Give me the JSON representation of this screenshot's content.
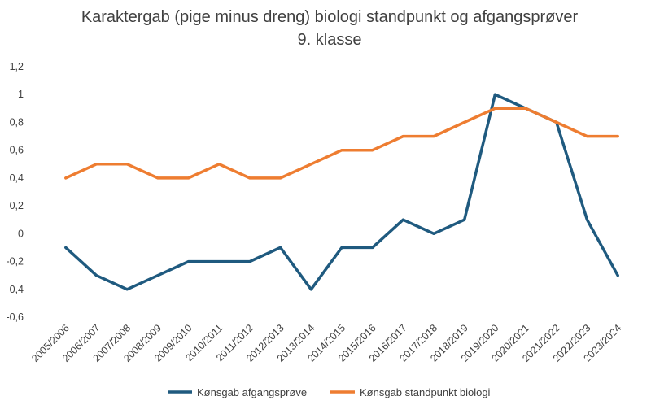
{
  "chart_data": {
    "type": "line",
    "title": "Karaktergab (pige minus dreng) biologi standpunkt og afgangsprøver",
    "subtitle": "9. klasse",
    "xlabel": "",
    "ylabel": "",
    "categories": [
      "2005/2006",
      "2006/2007",
      "2007/2008",
      "2008/2009",
      "2009/2010",
      "2010/2011",
      "2011/2012",
      "2012/2013",
      "2013/2014",
      "2014/2015",
      "2015/2016",
      "2016/2017",
      "2017/2018",
      "2018/2019",
      "2019/2020",
      "2020/2021",
      "2021/2022",
      "2022/2023",
      "2023/2024"
    ],
    "ylim": [
      -0.6,
      1.2
    ],
    "yticks": [
      "-0,6",
      "-0,4",
      "-0,2",
      "0",
      "0,2",
      "0,4",
      "0,6",
      "0,8",
      "1",
      "1,2"
    ],
    "grid": false,
    "legend_position": "bottom",
    "series": [
      {
        "name": "Kønsgab afgangsprøve",
        "color": "#1f5a7f",
        "values": [
          -0.1,
          -0.3,
          -0.4,
          -0.3,
          -0.2,
          -0.2,
          -0.2,
          -0.1,
          -0.4,
          -0.1,
          -0.1,
          0.1,
          0.0,
          0.1,
          1.0,
          0.9,
          0.8,
          0.1,
          -0.3
        ]
      },
      {
        "name": "Kønsgab standpunkt biologi",
        "color": "#ee7d31",
        "values": [
          0.4,
          0.5,
          0.5,
          0.4,
          0.4,
          0.5,
          0.4,
          0.4,
          0.5,
          0.6,
          0.6,
          0.7,
          0.7,
          0.8,
          0.9,
          0.9,
          0.8,
          0.7,
          0.7
        ]
      }
    ]
  }
}
